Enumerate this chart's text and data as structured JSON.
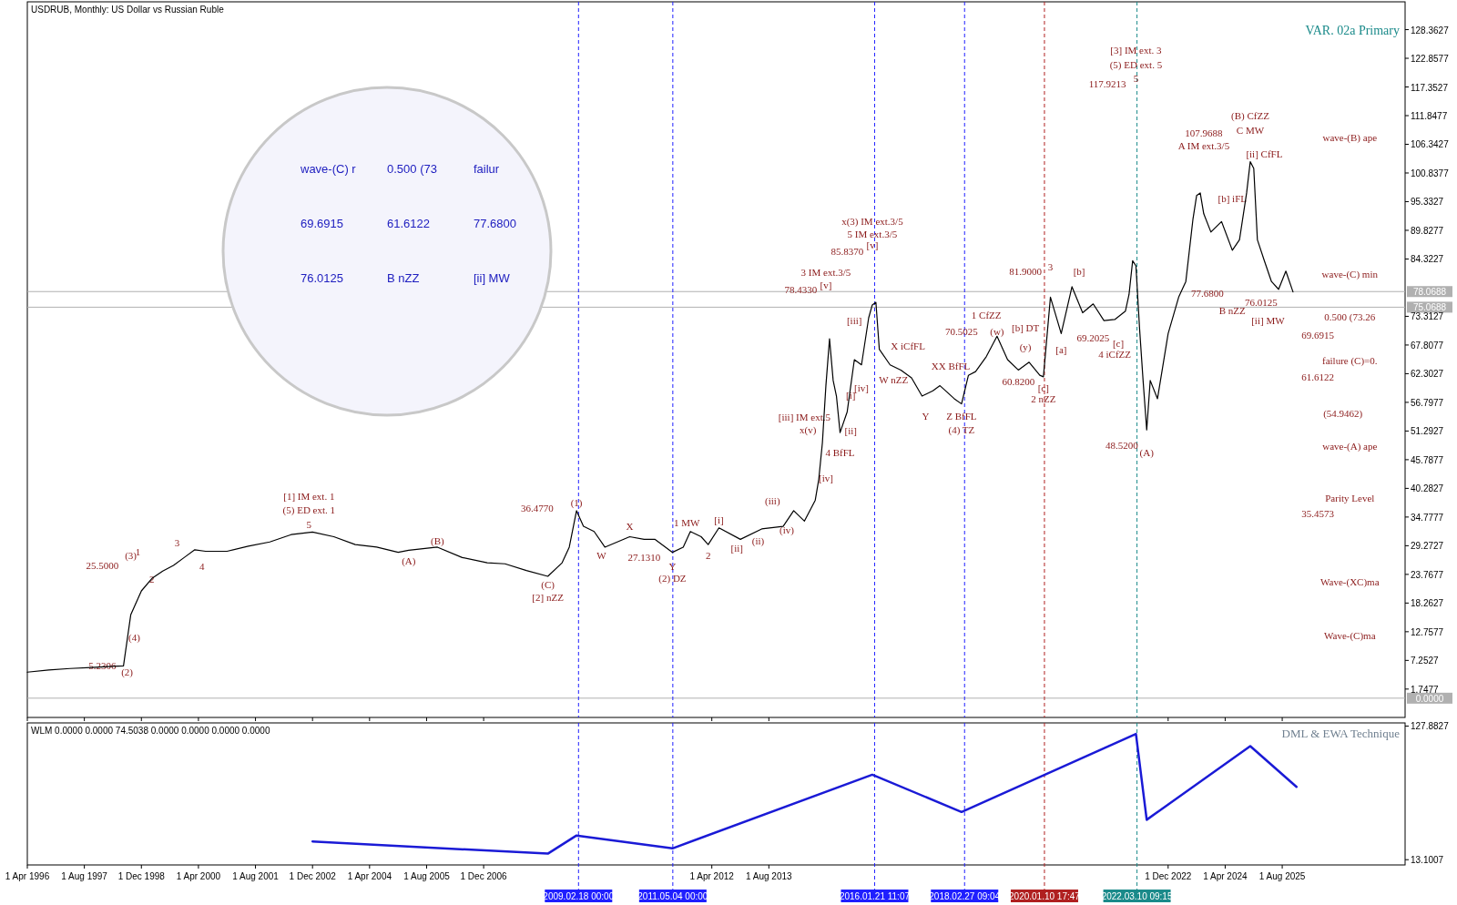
{
  "chart_data": [
    {
      "type": "line",
      "title": "USDRUB, Monthly:  US Dollar vs Russian Ruble",
      "subtitle": "VAR. 02a Primary",
      "xlim": [
        "1996-04-01",
        "2028-06-15"
      ],
      "ylim": [
        -3.7,
        133.7
      ],
      "yticks": [
        1.7477,
        7.2527,
        12.7577,
        18.2627,
        23.7677,
        29.2727,
        34.7777,
        40.2827,
        45.7877,
        51.2927,
        56.7977,
        62.3027,
        67.8077,
        73.3127,
        84.3227,
        89.8277,
        95.3327,
        100.8377,
        106.3427,
        111.8477,
        117.3527,
        122.8577,
        128.3627
      ],
      "xticks": [
        {
          "value": "1996-04-01",
          "label": null
        },
        {
          "value": "1997-08-01",
          "label": null
        },
        {
          "value": "1998-12-01",
          "label": null
        },
        {
          "value": "2000-04-01",
          "label": null
        },
        {
          "value": "2001-08-01",
          "label": null
        },
        {
          "value": "2002-12-01",
          "label": null
        },
        {
          "value": "2004-04-01",
          "label": null
        },
        {
          "value": "2005-08-01",
          "label": null
        },
        {
          "value": "2006-12-01",
          "label": null
        },
        {
          "value": "2012-04-01",
          "label": null
        },
        {
          "value": "2013-08-01",
          "label": null
        },
        {
          "value": "2022-12-01",
          "label": null
        },
        {
          "value": "2024-04-01",
          "label": null
        },
        {
          "value": "2025-08-01",
          "label": null
        }
      ],
      "tick_labels": "y",
      "marker": "none",
      "line_style": "solid",
      "series": [
        {
          "type": "line",
          "color": "#000000",
          "x": [
            "1996-04",
            "1996-10",
            "1997-04",
            "1997-10",
            "1998-04",
            "1998-07",
            "1998-09",
            "1998-12",
            "1999-03",
            "1999-06",
            "1999-09",
            "1999-12",
            "2000-03",
            "2000-06",
            "2000-12",
            "2001-06",
            "2001-12",
            "2002-06",
            "2002-12",
            "2003-06",
            "2003-12",
            "2004-06",
            "2004-12",
            "2005-03",
            "2005-11",
            "2006-06",
            "2007-01",
            "2007-06",
            "2007-12",
            "2008-06",
            "2008-10",
            "2008-12",
            "2009-02",
            "2009-04",
            "2009-07",
            "2009-10",
            "2010-05",
            "2010-09",
            "2010-12",
            "2011-05",
            "2011-08",
            "2011-10",
            "2012-01",
            "2012-03",
            "2012-06",
            "2012-12",
            "2013-06",
            "2013-12",
            "2014-03",
            "2014-06",
            "2014-09",
            "2014-10",
            "2014-11",
            "2014-12",
            "2015-01",
            "2015-02",
            "2015-03",
            "2015-04",
            "2015-06",
            "2015-08",
            "2015-10",
            "2015-12",
            "2016-01",
            "2016-02",
            "2016-03",
            "2016-06",
            "2016-09",
            "2016-12",
            "2017-03",
            "2017-06",
            "2017-08",
            "2017-12",
            "2018-02",
            "2018-04",
            "2018-06",
            "2018-09",
            "2018-12",
            "2019-03",
            "2019-06",
            "2019-09",
            "2019-12",
            "2020-01",
            "2020-03",
            "2020-06",
            "2020-09",
            "2020-12",
            "2021-03",
            "2021-06",
            "2021-09",
            "2021-12",
            "2022-01",
            "2022-02",
            "2022-03",
            "2022-04",
            "2022-05",
            "2022-06",
            "2022-07",
            "2022-09",
            "2022-12",
            "2023-03",
            "2023-05",
            "2023-07",
            "2023-08",
            "2023-09",
            "2023-10",
            "2023-12",
            "2024-03",
            "2024-06",
            "2024-08",
            "2024-10",
            "2024-11",
            "2024-12",
            "2025-01",
            "2025-03",
            "2025-05",
            "2025-07",
            "2025-09",
            "2025-11"
          ],
          "values": [
            5.0,
            5.4,
            5.7,
            5.9,
            6.1,
            6.2,
            16,
            20.6,
            23,
            24.4,
            25.5,
            27,
            28.5,
            28.2,
            28.2,
            29.2,
            30,
            31.4,
            31.9,
            31,
            29.5,
            29,
            28,
            28.4,
            29,
            27,
            26,
            25.8,
            24.5,
            23.4,
            26,
            29,
            36,
            33,
            32,
            29,
            31,
            30.5,
            30.5,
            28,
            29,
            32,
            31,
            29.5,
            32.7,
            30.5,
            32.5,
            33,
            36,
            34,
            38,
            42,
            49,
            60,
            69,
            61,
            58,
            51,
            55,
            65,
            64,
            73,
            75.5,
            76,
            67,
            64,
            63,
            61.5,
            58,
            59,
            60,
            57.5,
            56.5,
            62,
            62.7,
            65.6,
            69.5,
            65,
            63,
            64.5,
            62,
            61.7,
            77,
            70,
            79,
            74,
            75.7,
            72.5,
            72.7,
            74.3,
            77.5,
            84,
            83,
            71,
            61,
            51.5,
            61,
            57.5,
            70,
            77,
            80,
            92,
            96.5,
            97,
            93,
            89.5,
            91.5,
            86,
            88,
            97,
            103,
            101.7,
            88,
            84,
            80,
            78.5,
            82,
            78
          ]
        }
      ],
      "ref_lines": [
        {
          "axis": "y",
          "value": 78.0688,
          "label": "78.0688",
          "color": "#b0b0b0",
          "line_style": "solid"
        },
        {
          "axis": "y",
          "value": 75.0688,
          "label": "75.0688",
          "color": "#b0b0b0",
          "line_style": "solid"
        },
        {
          "axis": "y",
          "value": 0,
          "label": "0.0000",
          "color": "#b0b0b0",
          "line_style": "solid"
        },
        {
          "axis": "x",
          "value": "2009-02-18",
          "color": "#1f1fff",
          "line_style": "dashed"
        },
        {
          "axis": "x",
          "value": "2011-05-04",
          "color": "#1f1fff",
          "line_style": "dashed"
        },
        {
          "axis": "x",
          "value": "2016-01-21",
          "color": "#1f1fff",
          "line_style": "dashed"
        },
        {
          "axis": "x",
          "value": "2018-02-27",
          "color": "#1f1fff",
          "line_style": "dashed"
        },
        {
          "axis": "x",
          "value": "2020-01-10",
          "color": "#b02020",
          "line_style": "dashed"
        },
        {
          "axis": "x",
          "value": "2022-03-10",
          "color": "#1a8a8a",
          "line_style": "dashed"
        }
      ],
      "annotations": [
        "(2)",
        "5.2306",
        "(4)",
        "(3)",
        "25.5000",
        "1",
        "2",
        "3",
        "4",
        "5",
        "[1] IM ext. 1",
        "(5) ED ext. 1",
        "(A)",
        "(B)",
        "(C)",
        "[2] nZZ",
        "(1)",
        "36.4770",
        "W",
        "X",
        "27.1310",
        "Y",
        "(2) DZ",
        "1 MW",
        "2",
        "[i]",
        "[ii]",
        "(ii)",
        "(iii)",
        "(iv)",
        "[iii] IM ext.5",
        "x(v)",
        "[iv]",
        "3 IM ext.3/5",
        "[v]",
        "78.4330",
        "4 BfFL",
        "[i]",
        "[ii]",
        "[iii]",
        "[iv]",
        "[v]",
        "x(3) IM ext.3/5",
        "5 IM ext.3/5",
        "85.8370",
        "W nZZ",
        "X iCfFL",
        "Y",
        "XX BfFL",
        "Z BfFL",
        "(4) TZ",
        "70.5025",
        "1 CfZZ",
        "(w)",
        "[b] DT",
        "(y)",
        "60.8200",
        "[c]",
        "2 nZZ",
        "81.9000",
        "3",
        "[a]",
        "[b]",
        "69.2025",
        "[c]",
        "4 iCfZZ",
        "117.9213",
        "[3] IM ext. 3",
        "(5) ED ext. 5",
        "5",
        "48.5200",
        "(A)",
        "A IM ext.3/5",
        "[b] iFL",
        "(B) CfZZ",
        "C MW",
        "107.9688",
        "[ii] CfFL",
        "77.6800",
        "B nZZ",
        "76.0125",
        "[ii] MW",
        "wave-(B) ape",
        "wave-(C) min",
        "0.500 (73.26",
        "69.6915",
        "failure (C)=0.",
        "61.6122",
        "(54.9462)",
        "wave-(A) ape",
        "Parity Level",
        "35.4573",
        "Wave-(XC)ma",
        "Wave-(C)ma",
        "wave-(C) r",
        "0.500 (73",
        "failur",
        "69.6915",
        "61.6122",
        "77.6800",
        "76.0125",
        "B nZZ",
        "[ii] MW"
      ]
    },
    {
      "type": "line",
      "title": "WLM 0.0000 0.0000 74.5038 0.0000 0.0000 0.0000 0.0000",
      "xlim": [
        "1996-04-01",
        "2028-06-15"
      ],
      "ylim": [
        8.6,
        130.6
      ],
      "yticks": [
        127.8827,
        13.1007
      ],
      "xticks": [
        {
          "value": "1996-04-01",
          "label": "1 Apr 1996"
        },
        {
          "value": "1997-08-01",
          "label": "1 Aug 1997"
        },
        {
          "value": "1998-12-01",
          "label": "1 Dec 1998"
        },
        {
          "value": "2000-04-01",
          "label": "1 Apr 2000"
        },
        {
          "value": "2001-08-01",
          "label": "1 Aug 2001"
        },
        {
          "value": "2002-12-01",
          "label": "1 Dec 2002"
        },
        {
          "value": "2004-04-01",
          "label": "1 Apr 2004"
        },
        {
          "value": "2005-08-01",
          "label": "1 Aug 2005"
        },
        {
          "value": "2006-12-01",
          "label": "1 Dec 2006"
        },
        {
          "value": "2012-04-01",
          "label": "1 Apr 2012"
        },
        {
          "value": "2013-08-01",
          "label": "1 Aug 2013"
        },
        {
          "value": "2022-12-01",
          "label": "1 Dec 2022"
        },
        {
          "value": "2024-04-01",
          "label": "1 Apr 2024"
        },
        {
          "value": "2025-08-01",
          "label": "1 Aug 2025"
        }
      ],
      "marker": "none",
      "line_style": "solid",
      "series": [
        {
          "type": "line",
          "color": "#1a1ad6",
          "x": [
            "2002-12",
            "2008-06",
            "2009-02",
            "2011-05",
            "2016-01",
            "2018-02",
            "2022-03",
            "2022-06",
            "2024-11",
            "2025-12"
          ],
          "values": [
            28.7,
            18.3,
            33.9,
            22.8,
            86.1,
            54.1,
            121.1,
            47.4,
            110.7,
            75.7
          ]
        }
      ],
      "ref_lines": [
        {
          "axis": "x",
          "value": "2009-02-18",
          "label": "2009.02.18 00:00",
          "color": "#1f1fff",
          "line_style": "dashed"
        },
        {
          "axis": "x",
          "value": "2011-05-04",
          "label": "2011.05.04 00:00",
          "color": "#1f1fff",
          "line_style": "dashed"
        },
        {
          "axis": "x",
          "value": "2016-01-21",
          "label": "2016.01.21 11:07",
          "color": "#1f1fff",
          "line_style": "dashed"
        },
        {
          "axis": "x",
          "value": "2018-02-27",
          "label": "2018.02.27 09:04",
          "color": "#1f1fff",
          "line_style": "dashed"
        },
        {
          "axis": "x",
          "value": "2020-01-10",
          "label": "2020.01.10 17:47",
          "color": "#b02020",
          "line_style": "dashed"
        },
        {
          "axis": "x",
          "value": "2022-03-10",
          "label": "2022.03.10 09:15",
          "color": "#1a8a8a",
          "line_style": "dashed"
        }
      ],
      "annotations": [
        "DML & EWA Technique"
      ]
    }
  ]
}
